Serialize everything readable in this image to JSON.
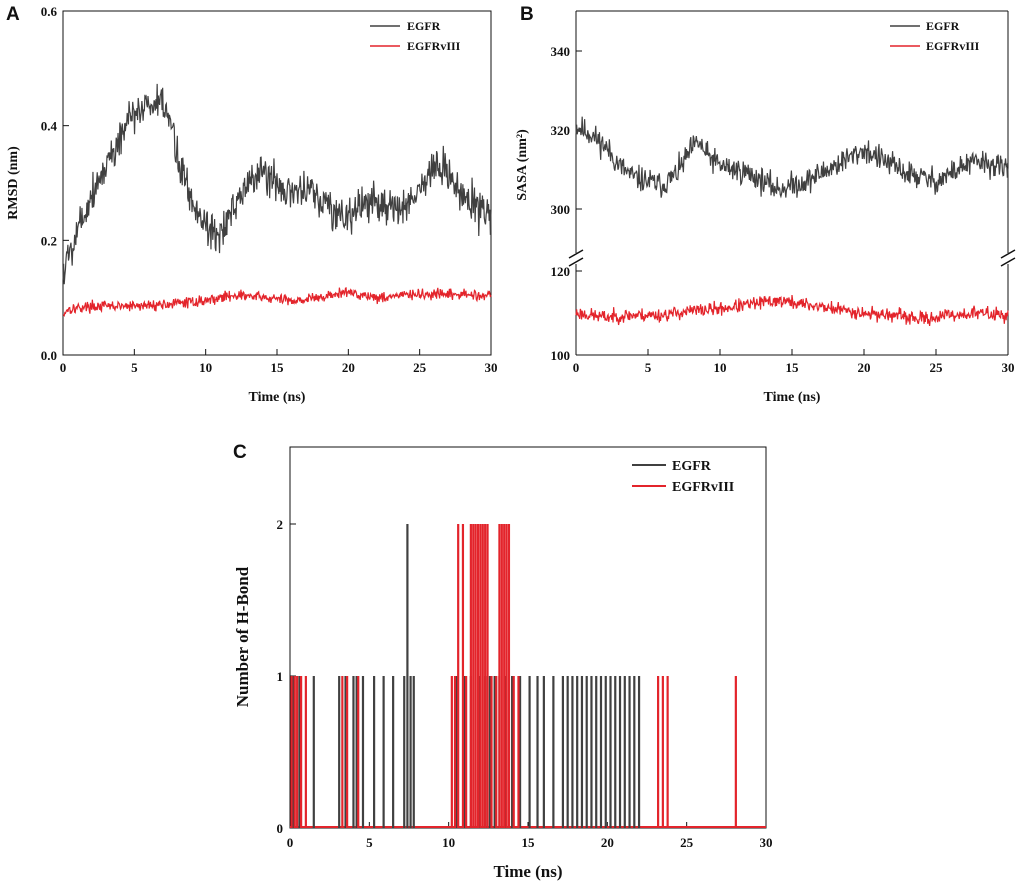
{
  "colors": {
    "egfr": "#404040",
    "egfrviii": "#e3242b",
    "axis": "#111111"
  },
  "chart_data": [
    {
      "id": "A",
      "type": "line",
      "panel_label": "A",
      "xlabel": "Time (ns)",
      "ylabel": "RMSD (nm)",
      "xlim": [
        0,
        30
      ],
      "ylim": [
        0,
        0.6
      ],
      "xticks": [
        0,
        5,
        10,
        15,
        20,
        25,
        30
      ],
      "yticks": [
        0.0,
        0.2,
        0.4,
        0.6
      ],
      "ytick_labels": [
        "0.0",
        "0.2",
        "0.4",
        "0.6"
      ],
      "legend": [
        "EGFR",
        "EGFRvIII"
      ],
      "legend_position": "top-right",
      "series": [
        {
          "name": "EGFR",
          "color_key": "egfr",
          "noise": 0.03,
          "x": [
            0,
            0.3,
            1,
            2,
            3,
            4,
            5,
            6,
            7,
            7.5,
            8,
            9,
            10,
            10.5,
            11,
            12,
            13,
            14,
            15,
            16,
            17,
            18,
            19,
            20,
            21,
            22,
            23,
            24,
            25,
            26,
            27,
            28,
            29,
            30
          ],
          "y": [
            0.14,
            0.17,
            0.22,
            0.28,
            0.33,
            0.38,
            0.42,
            0.44,
            0.43,
            0.41,
            0.35,
            0.27,
            0.23,
            0.22,
            0.21,
            0.25,
            0.3,
            0.32,
            0.3,
            0.28,
            0.29,
            0.27,
            0.25,
            0.24,
            0.26,
            0.27,
            0.25,
            0.26,
            0.29,
            0.33,
            0.31,
            0.28,
            0.26,
            0.24
          ]
        },
        {
          "name": "EGFRvIII",
          "color_key": "egfrviii",
          "noise": 0.008,
          "x": [
            0,
            0.3,
            2,
            5,
            8,
            10,
            12,
            14,
            16,
            18,
            20,
            22,
            24,
            26,
            28,
            30
          ],
          "y": [
            0.07,
            0.08,
            0.085,
            0.085,
            0.09,
            0.095,
            0.105,
            0.1,
            0.095,
            0.1,
            0.11,
            0.1,
            0.105,
            0.105,
            0.105,
            0.105
          ]
        }
      ]
    },
    {
      "id": "B",
      "type": "line",
      "panel_label": "B",
      "xlabel": "Time (ns)",
      "ylabel": "SASA (nm²)",
      "xlim": [
        0,
        30
      ],
      "axis_break": true,
      "lower_ylim": [
        100,
        120
      ],
      "upper_ylim": [
        290,
        350
      ],
      "lower_yticks": [
        100,
        120
      ],
      "upper_yticks": [
        300,
        320,
        340
      ],
      "xticks": [
        0,
        5,
        10,
        15,
        20,
        25,
        30
      ],
      "legend": [
        "EGFR",
        "EGFRvIII"
      ],
      "legend_position": "top-right",
      "series": [
        {
          "name": "EGFR",
          "color_key": "egfr",
          "segment": "upper",
          "noise": 2.8,
          "x": [
            0,
            1,
            2,
            3,
            4,
            5,
            6,
            7,
            8,
            8.5,
            9,
            10,
            11,
            12,
            13,
            14,
            15,
            16,
            17,
            18,
            19,
            20,
            21,
            22,
            23,
            24,
            25,
            26,
            27,
            28,
            29,
            30
          ],
          "y": [
            321,
            319,
            316,
            311,
            308,
            307,
            306,
            309,
            315,
            317,
            314,
            311,
            310,
            309,
            307,
            305,
            306,
            307,
            309,
            311,
            313,
            315,
            313,
            311,
            309,
            308,
            307,
            309,
            311,
            312,
            311,
            310
          ]
        },
        {
          "name": "EGFRvIII",
          "color_key": "egfrviii",
          "segment": "lower",
          "noise": 1.4,
          "x": [
            0,
            2,
            4,
            6,
            8,
            10,
            12,
            14,
            16,
            18,
            20,
            22,
            24,
            26,
            28,
            30
          ],
          "y": [
            110,
            109,
            109.5,
            109.5,
            110.5,
            111,
            112,
            113,
            112,
            111,
            110,
            109.5,
            108.5,
            109.5,
            110,
            109.5
          ]
        }
      ]
    },
    {
      "id": "C",
      "type": "bar",
      "panel_label": "C",
      "xlabel": "Time (ns)",
      "ylabel": "Number of H-Bond",
      "xlim": [
        0,
        30
      ],
      "ylim": [
        0,
        2.5
      ],
      "xticks": [
        0,
        5,
        10,
        15,
        20,
        25,
        30
      ],
      "yticks": [
        0,
        1,
        2
      ],
      "legend": [
        "EGFR",
        "EGFRvIII"
      ],
      "legend_position": "top-right",
      "series": [
        {
          "name": "EGFR",
          "color_key": "egfr",
          "events": [
            {
              "t": 0.2,
              "v": 1
            },
            {
              "t": 0.6,
              "v": 1
            },
            {
              "t": 1.5,
              "v": 1
            },
            {
              "t": 3.1,
              "v": 1
            },
            {
              "t": 3.5,
              "v": 1
            },
            {
              "t": 4.0,
              "v": 1
            },
            {
              "t": 4.2,
              "v": 1
            },
            {
              "t": 4.6,
              "v": 1
            },
            {
              "t": 5.3,
              "v": 1
            },
            {
              "t": 5.9,
              "v": 1
            },
            {
              "t": 6.5,
              "v": 1
            },
            {
              "t": 7.2,
              "v": 1
            },
            {
              "t": 7.4,
              "v": 2
            },
            {
              "t": 7.6,
              "v": 1
            },
            {
              "t": 7.8,
              "v": 1
            },
            {
              "t": 10.5,
              "v": 1
            },
            {
              "t": 11.0,
              "v": 1
            },
            {
              "t": 11.4,
              "v": 1
            },
            {
              "t": 11.9,
              "v": 1
            },
            {
              "t": 12.3,
              "v": 1
            },
            {
              "t": 12.6,
              "v": 1
            },
            {
              "t": 12.9,
              "v": 1
            },
            {
              "t": 13.2,
              "v": 1
            },
            {
              "t": 13.6,
              "v": 1
            },
            {
              "t": 14.0,
              "v": 1
            },
            {
              "t": 14.5,
              "v": 1
            },
            {
              "t": 15.1,
              "v": 1
            },
            {
              "t": 15.6,
              "v": 1
            },
            {
              "t": 16.0,
              "v": 1
            },
            {
              "t": 16.6,
              "v": 1
            },
            {
              "t": 17.2,
              "v": 1
            },
            {
              "t": 17.5,
              "v": 1
            },
            {
              "t": 17.8,
              "v": 1
            },
            {
              "t": 18.1,
              "v": 1
            },
            {
              "t": 18.4,
              "v": 1
            },
            {
              "t": 18.7,
              "v": 1
            },
            {
              "t": 19.0,
              "v": 1
            },
            {
              "t": 19.3,
              "v": 1
            },
            {
              "t": 19.6,
              "v": 1
            },
            {
              "t": 19.9,
              "v": 1
            },
            {
              "t": 20.2,
              "v": 1
            },
            {
              "t": 20.5,
              "v": 1
            },
            {
              "t": 20.8,
              "v": 1
            },
            {
              "t": 21.1,
              "v": 1
            },
            {
              "t": 21.4,
              "v": 1
            },
            {
              "t": 21.7,
              "v": 1
            },
            {
              "t": 22.0,
              "v": 1
            }
          ]
        },
        {
          "name": "EGFRvIII",
          "color_key": "egfrviii",
          "events": [
            {
              "t": 0.1,
              "v": 1
            },
            {
              "t": 0.3,
              "v": 1
            },
            {
              "t": 0.45,
              "v": 1
            },
            {
              "t": 0.7,
              "v": 1
            },
            {
              "t": 1.0,
              "v": 1
            },
            {
              "t": 3.3,
              "v": 1
            },
            {
              "t": 3.6,
              "v": 1
            },
            {
              "t": 4.3,
              "v": 1
            },
            {
              "t": 10.2,
              "v": 1
            },
            {
              "t": 10.4,
              "v": 1
            },
            {
              "t": 10.6,
              "v": 2
            },
            {
              "t": 10.9,
              "v": 2
            },
            {
              "t": 11.1,
              "v": 1
            },
            {
              "t": 11.4,
              "v": 2
            },
            {
              "t": 11.55,
              "v": 2
            },
            {
              "t": 11.7,
              "v": 2
            },
            {
              "t": 11.85,
              "v": 2
            },
            {
              "t": 12.0,
              "v": 2
            },
            {
              "t": 12.15,
              "v": 2
            },
            {
              "t": 12.3,
              "v": 2
            },
            {
              "t": 12.45,
              "v": 2
            },
            {
              "t": 12.7,
              "v": 1
            },
            {
              "t": 13.0,
              "v": 1
            },
            {
              "t": 13.2,
              "v": 2
            },
            {
              "t": 13.35,
              "v": 2
            },
            {
              "t": 13.5,
              "v": 2
            },
            {
              "t": 13.65,
              "v": 2
            },
            {
              "t": 13.8,
              "v": 2
            },
            {
              "t": 14.1,
              "v": 1
            },
            {
              "t": 14.4,
              "v": 1
            },
            {
              "t": 23.2,
              "v": 1
            },
            {
              "t": 23.5,
              "v": 1
            },
            {
              "t": 23.8,
              "v": 1
            },
            {
              "t": 28.1,
              "v": 1
            }
          ]
        }
      ]
    }
  ]
}
